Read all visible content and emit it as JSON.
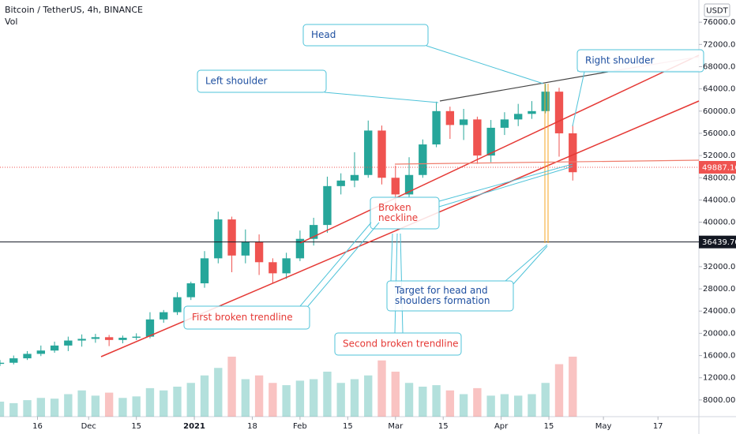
{
  "chart_data": {
    "type": "candlestick",
    "title": "Bitcoin / TetherUS, 4h, BINANCE",
    "volume_label": "Vol",
    "currency": "USDT",
    "up_color": "#26a69a",
    "down_color": "#ef5350",
    "x": [
      0,
      4,
      8,
      12,
      16,
      20,
      24,
      28,
      32,
      36,
      40,
      44,
      48,
      52,
      56,
      60,
      64,
      68,
      72,
      76,
      80,
      84,
      88,
      92,
      96,
      100,
      104,
      108,
      112,
      116,
      120,
      124,
      128,
      132,
      136,
      140,
      144,
      148,
      152,
      156,
      160,
      164,
      168
    ],
    "open": [
      14500,
      14700,
      15500,
      16300,
      16900,
      17800,
      18700,
      19000,
      19300,
      18800,
      19200,
      19400,
      22500,
      23800,
      26500,
      29000,
      33500,
      40500,
      34000,
      36500,
      32800,
      30800,
      33500,
      37000,
      39500,
      46500,
      47500,
      48500,
      56500,
      48000,
      45000,
      48500,
      54000,
      60000,
      57500,
      58500,
      52000,
      57000,
      58500,
      59500,
      60000,
      63500,
      56000
    ],
    "high": [
      15200,
      16000,
      16800,
      17800,
      18500,
      19400,
      19800,
      19900,
      19700,
      19600,
      20000,
      23800,
      24200,
      27400,
      29300,
      34800,
      41900,
      41000,
      38700,
      37800,
      33500,
      34500,
      38500,
      40800,
      48200,
      48800,
      52600,
      58300,
      57400,
      50200,
      51700,
      54900,
      61700,
      60800,
      60400,
      59000,
      58400,
      59800,
      61300,
      61800,
      64900,
      64200,
      57500
    ],
    "low": [
      14100,
      14400,
      15200,
      15900,
      16500,
      16800,
      17600,
      18300,
      17700,
      18200,
      18800,
      19100,
      21900,
      23300,
      26000,
      28200,
      32600,
      31000,
      32600,
      30500,
      29000,
      29800,
      33000,
      35800,
      38100,
      45000,
      46300,
      48000,
      46800,
      43000,
      44500,
      48000,
      53500,
      55000,
      54800,
      50500,
      50800,
      55700,
      57300,
      58600,
      59600,
      51800,
      47500
    ],
    "close": [
      14700,
      15500,
      16300,
      16900,
      17800,
      18700,
      19000,
      19300,
      18800,
      19200,
      19400,
      22500,
      23800,
      26500,
      29000,
      33500,
      40500,
      34000,
      36500,
      32800,
      30800,
      33500,
      37000,
      39500,
      46500,
      47500,
      48500,
      56500,
      48000,
      45000,
      48500,
      54000,
      60000,
      57500,
      58500,
      52000,
      57000,
      58500,
      59500,
      60000,
      63500,
      56000,
      49000
    ],
    "volume": [
      20,
      18,
      22,
      25,
      24,
      30,
      35,
      28,
      32,
      25,
      27,
      38,
      35,
      40,
      45,
      55,
      65,
      80,
      50,
      55,
      45,
      42,
      48,
      50,
      60,
      45,
      50,
      55,
      75,
      60,
      45,
      40,
      42,
      35,
      30,
      38,
      28,
      30,
      28,
      30,
      45,
      70,
      80
    ],
    "volume_lim": [
      0,
      100
    ],
    "xlim": [
      0,
      205
    ],
    "xticks": [
      {
        "value": 11,
        "label": "16"
      },
      {
        "value": 26,
        "label": "Dec"
      },
      {
        "value": 40,
        "label": "15"
      },
      {
        "value": 57,
        "label": "2021"
      },
      {
        "value": 74,
        "label": "18"
      },
      {
        "value": 88,
        "label": "Feb"
      },
      {
        "value": 102,
        "label": "15"
      },
      {
        "value": 116,
        "label": "Mar"
      },
      {
        "value": 130,
        "label": "15"
      },
      {
        "value": 147,
        "label": "Apr"
      },
      {
        "value": 161,
        "label": "15"
      },
      {
        "value": 177,
        "label": "May"
      },
      {
        "value": 193,
        "label": "17"
      }
    ],
    "ylim": [
      5000,
      80000
    ],
    "yticks": [
      {
        "value": 8000,
        "label": "8000.00"
      },
      {
        "value": 12000,
        "label": "12000.00"
      },
      {
        "value": 16000,
        "label": "16000.00"
      },
      {
        "value": 20000,
        "label": "20000.00"
      },
      {
        "value": 24000,
        "label": "24000.00"
      },
      {
        "value": 28000,
        "label": "28000.00"
      },
      {
        "value": 32000,
        "label": "32000.00"
      },
      {
        "value": 36000,
        "label": "36000.00"
      },
      {
        "value": 40000,
        "label": "40000.00"
      },
      {
        "value": 44000,
        "label": "44000.00"
      },
      {
        "value": 48000,
        "label": "48000.00"
      },
      {
        "value": 52000,
        "label": "52000.00"
      },
      {
        "value": 56000,
        "label": "56000.00"
      },
      {
        "value": 60000,
        "label": "60000.00"
      },
      {
        "value": 64000,
        "label": "64000.00"
      },
      {
        "value": 68000,
        "label": "68000.00"
      },
      {
        "value": 72000,
        "label": "72000.00"
      },
      {
        "value": 76000,
        "label": "76000.00"
      }
    ],
    "price_lines": [
      {
        "value": 49887.16,
        "label": "49887.16",
        "color": "#ef5350"
      },
      {
        "value": 36439.7,
        "label": "36439.70",
        "color": "#131722"
      }
    ],
    "annotations": [
      {
        "lines": [
          "Head"
        ],
        "color": "#1e4fa0"
      },
      {
        "lines": [
          "Left shoulder"
        ],
        "color": "#1e4fa0"
      },
      {
        "lines": [
          "Right shoulder"
        ],
        "color": "#1e4fa0"
      },
      {
        "lines": [
          "Broken",
          "neckline"
        ],
        "color": "#e53935"
      },
      {
        "lines": [
          "First broken trendline"
        ],
        "color": "#e53935"
      },
      {
        "lines": [
          "Second broken trendline"
        ],
        "color": "#e53935"
      },
      {
        "lines": [
          "Target for head and",
          "shoulders formation"
        ],
        "color": "#1e4fa0"
      }
    ]
  }
}
